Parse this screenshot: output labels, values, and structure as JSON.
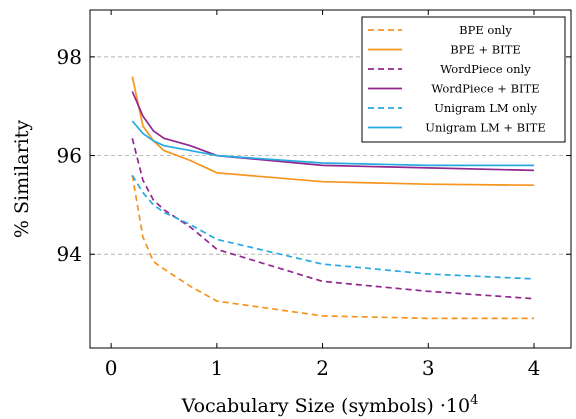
{
  "chart_data": {
    "type": "line",
    "xlabel": "Vocabulary Size (symbols) ·10",
    "xlabel_exponent": "4",
    "ylabel": "% Similarity",
    "xlim": [
      -0.2,
      4.35
    ],
    "ylim": [
      92.1,
      98.95
    ],
    "xticks": [
      0,
      1,
      2,
      3,
      4
    ],
    "xtick_labels": [
      "0",
      "1",
      "2",
      "3",
      "4"
    ],
    "yticks": [
      94,
      96,
      98
    ],
    "ytick_labels": [
      "94",
      "96",
      "98"
    ],
    "grid": "horizontal dashed",
    "legend_position": "top-right",
    "series": [
      {
        "name": "BPE only",
        "color": "#f7941d",
        "dash": "dashed",
        "x": [
          0.2,
          0.3,
          0.4,
          0.5,
          0.75,
          1,
          2,
          3,
          4
        ],
        "y": [
          95.6,
          94.35,
          93.85,
          93.7,
          93.35,
          93.05,
          92.75,
          92.7,
          92.7
        ]
      },
      {
        "name": "BPE + BITE",
        "color": "#f7941d",
        "dash": "solid",
        "x": [
          0.2,
          0.3,
          0.4,
          0.5,
          0.75,
          1,
          2,
          3,
          4
        ],
        "y": [
          97.6,
          96.6,
          96.3,
          96.1,
          95.9,
          95.65,
          95.47,
          95.42,
          95.4
        ]
      },
      {
        "name": "WordPiece only",
        "color": "#92278f",
        "dash": "dashed",
        "x": [
          0.2,
          0.3,
          0.4,
          0.5,
          0.75,
          1,
          2,
          3,
          4
        ],
        "y": [
          96.35,
          95.5,
          95.1,
          94.9,
          94.55,
          94.1,
          93.45,
          93.25,
          93.1
        ]
      },
      {
        "name": "WordPiece + BITE",
        "color": "#92278f",
        "dash": "solid",
        "x": [
          0.2,
          0.3,
          0.4,
          0.5,
          0.75,
          1,
          2,
          3,
          4
        ],
        "y": [
          97.3,
          96.8,
          96.5,
          96.35,
          96.2,
          96.0,
          95.8,
          95.75,
          95.7
        ]
      },
      {
        "name": "Unigram LM only",
        "color": "#27aae1",
        "dash": "dashed",
        "x": [
          0.2,
          0.3,
          0.4,
          0.5,
          0.75,
          1,
          2,
          3,
          4
        ],
        "y": [
          95.6,
          95.25,
          95.0,
          94.85,
          94.6,
          94.3,
          93.8,
          93.6,
          93.5
        ]
      },
      {
        "name": "Unigram LM + BITE",
        "color": "#27aae1",
        "dash": "solid",
        "x": [
          0.2,
          0.3,
          0.4,
          0.5,
          0.75,
          1,
          2,
          3,
          4
        ],
        "y": [
          96.7,
          96.45,
          96.3,
          96.2,
          96.1,
          96.0,
          95.85,
          95.8,
          95.8
        ]
      }
    ]
  }
}
